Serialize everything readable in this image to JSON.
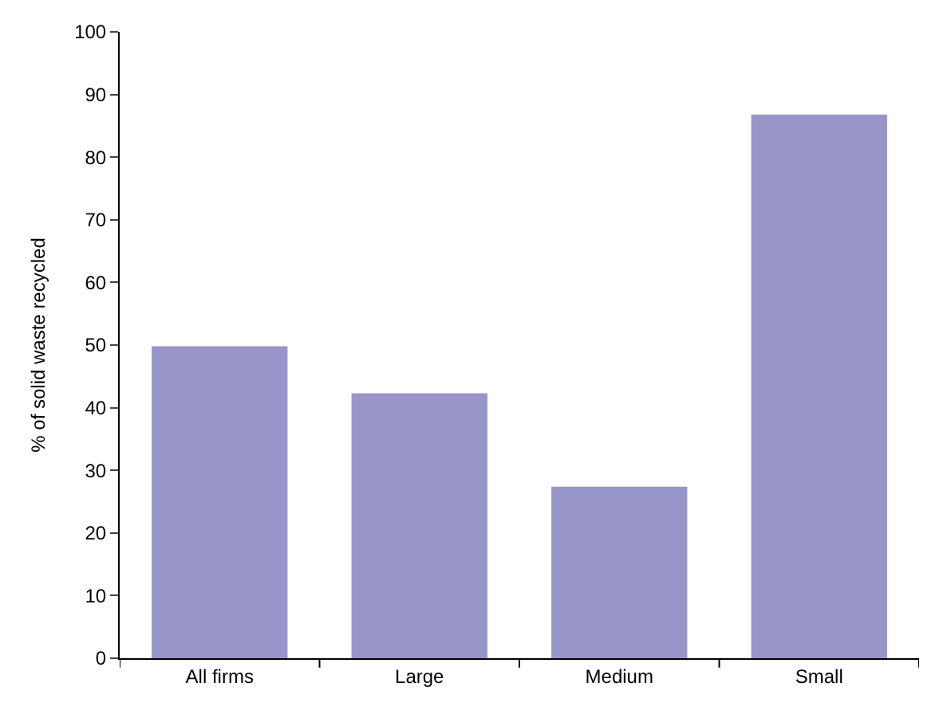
{
  "chart_data": {
    "type": "bar",
    "ylabel": "% of solid waste recycled",
    "categories": [
      "All firms",
      "Large",
      "Medium",
      "Small"
    ],
    "values": [
      49.8,
      42.3,
      27.4,
      86.8
    ],
    "color": "#9896c8",
    "ylim": [
      0,
      100
    ],
    "yticks": [
      0,
      10,
      20,
      30,
      40,
      50,
      60,
      70,
      80,
      90,
      100
    ]
  }
}
